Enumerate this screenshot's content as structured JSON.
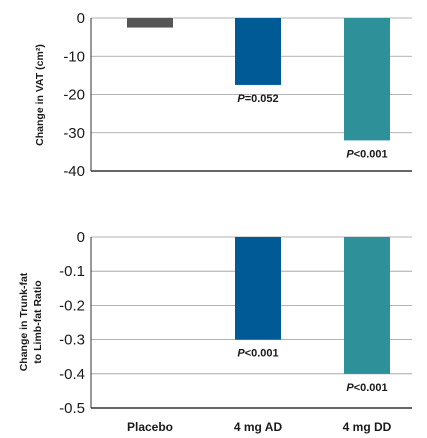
{
  "chart_data": [
    {
      "type": "bar",
      "ylabel": "Change in VAT (cm²)",
      "categories": [
        "Placebo",
        "4 mg AD",
        "4 mg DD"
      ],
      "values": [
        -2.5,
        -17.5,
        -32
      ],
      "ylim": [
        -40,
        0
      ],
      "yticks": [
        "0",
        "-10",
        "-20",
        "-30",
        "-40"
      ],
      "ytick_values": [
        0,
        -10,
        -20,
        -30,
        -40
      ],
      "grid": true,
      "colors": [
        "#555555",
        "#005a96",
        "#2e9098"
      ],
      "annotations": [
        {
          "category": "4 mg AD",
          "p": "P",
          "text": "=0.052"
        },
        {
          "category": "4 mg DD",
          "p": "P",
          "text": "<0.001"
        }
      ]
    },
    {
      "type": "bar",
      "ylabel_lines": [
        "Change in Trunk-fat",
        "to Limb-fat Ratio"
      ],
      "categories": [
        "Placebo",
        "4 mg AD",
        "4 mg DD"
      ],
      "values": [
        0,
        -0.3,
        -0.4
      ],
      "ylim": [
        -0.5,
        0
      ],
      "yticks": [
        "0",
        "-0.1",
        "-0.2",
        "-0.3",
        "-0.4",
        "-0.5"
      ],
      "ytick_values": [
        0,
        -0.1,
        -0.2,
        -0.3,
        -0.4,
        -0.5
      ],
      "grid": true,
      "colors": [
        "#555555",
        "#005a96",
        "#2e9098"
      ],
      "annotations": [
        {
          "category": "4 mg AD",
          "p": "P",
          "text": "<0.001"
        },
        {
          "category": "4 mg DD",
          "p": "P",
          "text": "<0.001"
        }
      ]
    }
  ]
}
